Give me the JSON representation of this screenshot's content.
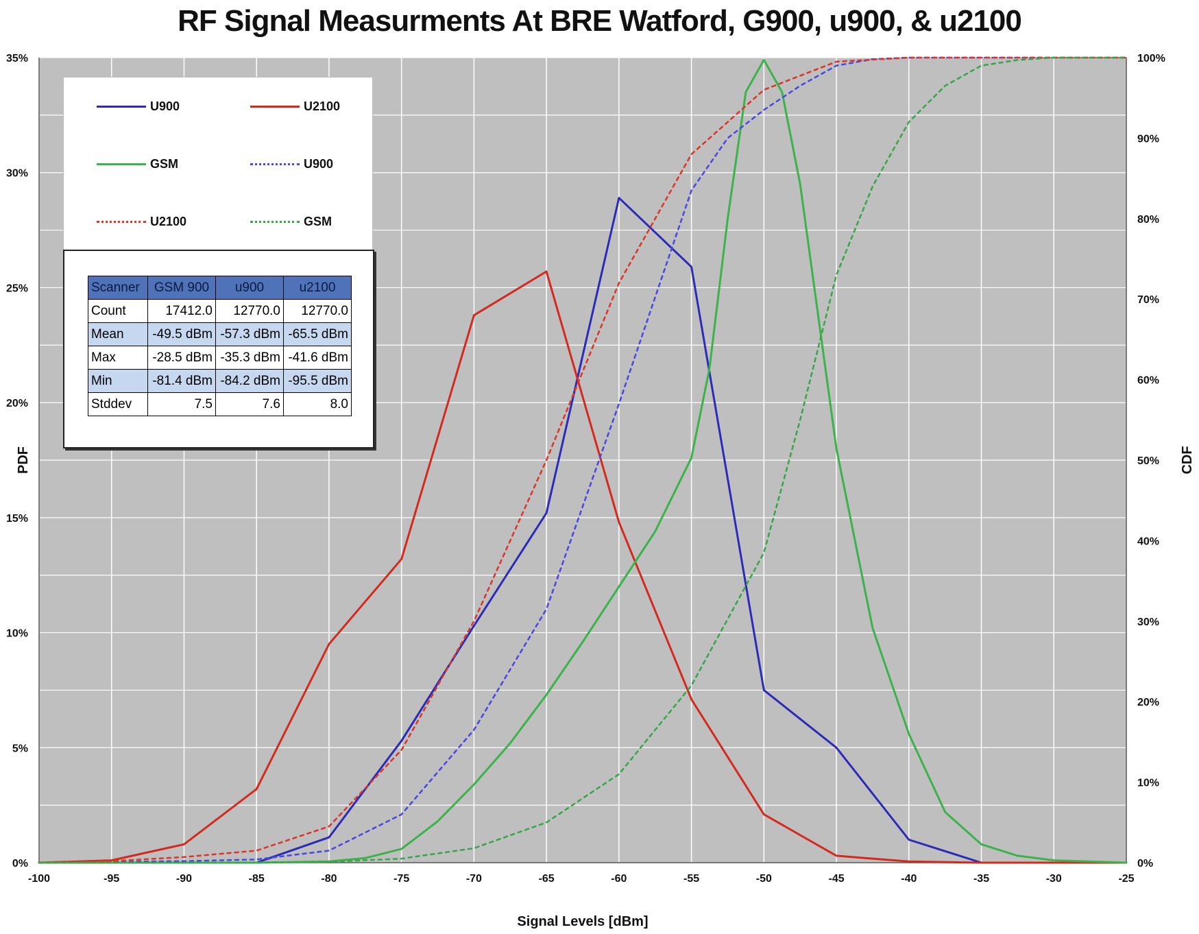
{
  "chart_data": {
    "type": "line",
    "title": "RF Signal Measurments At BRE Watford, G900, u900, & u2100",
    "xlabel": "Signal Levels [dBm]",
    "ylabel": "PDF",
    "y2label": "CDF",
    "xlim": [
      -100,
      -25
    ],
    "ylim": [
      0,
      35
    ],
    "y2lim": [
      0,
      100
    ],
    "x_ticks": [
      "-100",
      "-95",
      "-90",
      "-85",
      "-80",
      "-75",
      "-70",
      "-65",
      "-60",
      "-55",
      "-50",
      "-45",
      "-40",
      "-35",
      "-30",
      "-25"
    ],
    "y_ticks": [
      "0%",
      "5%",
      "10%",
      "15%",
      "20%",
      "25%",
      "30%",
      "35%"
    ],
    "y2_ticks": [
      "0%",
      "10%",
      "20%",
      "30%",
      "40%",
      "50%",
      "60%",
      "70%",
      "80%",
      "90%",
      "100%"
    ],
    "grid": true,
    "background": "#bfbfbf",
    "series": [
      {
        "name": "U900",
        "axis": "left",
        "style": "solid",
        "color": "#2b2bb8",
        "x": [
          -100,
          -95,
          -90,
          -85,
          -80,
          -75,
          -70,
          -65,
          -60,
          -55,
          -50,
          -45,
          -40,
          -35,
          -30,
          -25
        ],
        "y": [
          0,
          0,
          0,
          0,
          1.1,
          5.3,
          10.3,
          15.2,
          28.9,
          25.9,
          7.5,
          5.0,
          1.0,
          0,
          0,
          0
        ]
      },
      {
        "name": "U2100",
        "axis": "left",
        "style": "solid",
        "color": "#d42a1e",
        "x": [
          -100,
          -95,
          -90,
          -85,
          -80,
          -75,
          -70,
          -65,
          -60,
          -55,
          -50,
          -45,
          -40,
          -35,
          -30,
          -25
        ],
        "y": [
          0,
          0.1,
          0.8,
          3.2,
          9.5,
          13.2,
          23.8,
          25.7,
          14.8,
          7.1,
          2.1,
          0.3,
          0.05,
          0,
          0,
          0
        ]
      },
      {
        "name": "GSM",
        "axis": "left",
        "style": "solid",
        "color": "#3bb34a",
        "x": [
          -100,
          -95,
          -90,
          -85,
          -80,
          -77.5,
          -75,
          -72.5,
          -70,
          -67.5,
          -65,
          -62.5,
          -60,
          -57.5,
          -55,
          -53.75,
          -52.5,
          -51.25,
          -50,
          -48.75,
          -47.5,
          -45,
          -42.5,
          -40,
          -37.5,
          -35,
          -32.5,
          -30,
          -25
        ],
        "y": [
          0,
          0,
          0,
          0,
          0.05,
          0.2,
          0.6,
          1.8,
          3.4,
          5.2,
          7.3,
          9.6,
          12.0,
          14.4,
          17.6,
          21.5,
          28.0,
          33.5,
          34.9,
          33.5,
          29.5,
          18.0,
          10.2,
          5.6,
          2.2,
          0.8,
          0.3,
          0.1,
          0
        ]
      },
      {
        "name": "U900",
        "axis": "right",
        "style": "dashed",
        "color": "#4a4ae0",
        "x": [
          -100,
          -95,
          -90,
          -85,
          -80,
          -75,
          -70,
          -65,
          -60,
          -55,
          -52.5,
          -50,
          -47.5,
          -45,
          -42.5,
          -40,
          -35,
          -30,
          -25
        ],
        "y": [
          0,
          0.1,
          0.2,
          0.4,
          1.5,
          6.0,
          16.5,
          31.5,
          57.0,
          83.5,
          90.0,
          93.5,
          96.5,
          99.0,
          99.8,
          100,
          100,
          100,
          100
        ]
      },
      {
        "name": "U2100",
        "axis": "right",
        "style": "dashed",
        "color": "#d9382a",
        "x": [
          -100,
          -95,
          -90,
          -85,
          -80,
          -75,
          -70,
          -65,
          -60,
          -55,
          -50,
          -45,
          -40,
          -35,
          -30,
          -25
        ],
        "y": [
          0,
          0.2,
          0.7,
          1.5,
          4.5,
          14.0,
          30.0,
          50.0,
          72.0,
          88.0,
          96.0,
          99.5,
          100,
          100,
          100,
          100
        ]
      },
      {
        "name": "GSM",
        "axis": "right",
        "style": "dashed",
        "color": "#3aa64a",
        "x": [
          -100,
          -95,
          -90,
          -85,
          -80,
          -75,
          -70,
          -65,
          -60,
          -55,
          -50,
          -47.5,
          -45,
          -42.5,
          -40,
          -37.5,
          -35,
          -32.5,
          -30,
          -27.5,
          -25
        ],
        "y": [
          0,
          0,
          0,
          0,
          0.1,
          0.5,
          1.8,
          5.0,
          11.0,
          22.0,
          38.5,
          55.0,
          73.0,
          84.0,
          92.0,
          96.5,
          99.0,
          99.7,
          100,
          100,
          100
        ]
      }
    ]
  },
  "legend": {
    "items": [
      {
        "label": "U900",
        "color": "#2b2bb8",
        "style": "solid"
      },
      {
        "label": "U2100",
        "color": "#d42a1e",
        "style": "solid"
      },
      {
        "label": "GSM",
        "color": "#3bb34a",
        "style": "solid"
      },
      {
        "label": "U900",
        "color": "#4a4ae0",
        "style": "dashed"
      },
      {
        "label": "U2100",
        "color": "#d9382a",
        "style": "dashed"
      },
      {
        "label": "GSM",
        "color": "#3aa64a",
        "style": "dashed"
      }
    ]
  },
  "stats_table": {
    "header": [
      "Scanner",
      "GSM 900",
      "u900",
      "u2100"
    ],
    "rows": [
      [
        "Count",
        "17412.0",
        "12770.0",
        "12770.0"
      ],
      [
        "Mean",
        "-49.5 dBm",
        "-57.3 dBm",
        "-65.5 dBm"
      ],
      [
        "Max",
        "-28.5 dBm",
        "-35.3 dBm",
        "-41.6 dBm"
      ],
      [
        "Min",
        "-81.4 dBm",
        "-84.2 dBm",
        "-95.5 dBm"
      ],
      [
        "Stddev",
        "7.5",
        "7.6",
        "8.0"
      ]
    ]
  }
}
